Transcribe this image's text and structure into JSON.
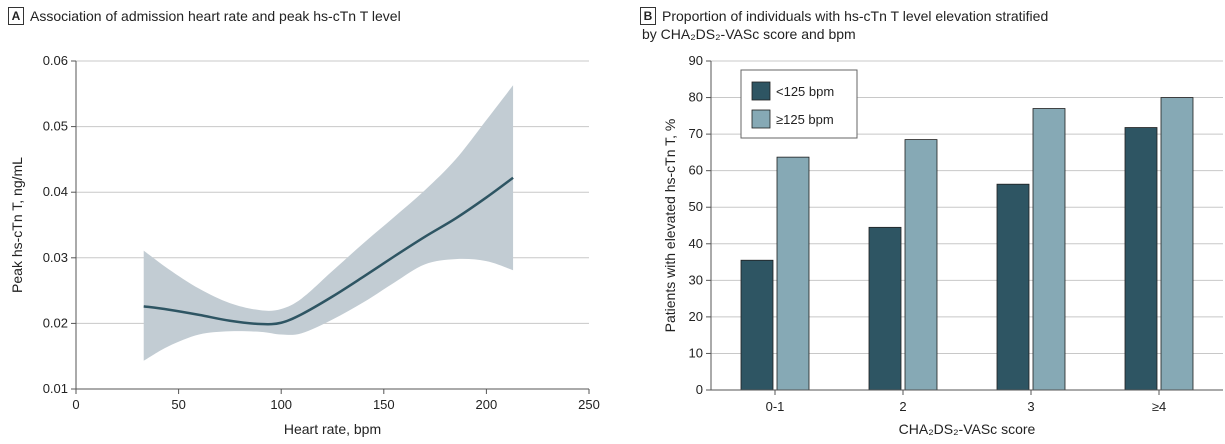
{
  "panel_a": {
    "letter": "A",
    "title": "Association of admission heart rate and peak hs-cTn T level"
  },
  "panel_b": {
    "letter": "B",
    "title_line1": "Proportion of individuals with hs-cTn T level elevation stratified",
    "title_line2": "by CHA₂DS₂-VASc score and bpm"
  },
  "chart_data": [
    {
      "type": "line",
      "title": "Association of admission heart rate and peak hs-cTn T level",
      "xlabel": "Heart rate, bpm",
      "ylabel": "Peak hs-cTn T, ng/mL",
      "xlim": [
        0,
        250
      ],
      "ylim": [
        0.01,
        0.06
      ],
      "xticks": [
        "0",
        "50",
        "100",
        "150",
        "200",
        "250"
      ],
      "yticks": [
        "0.01",
        "0.02",
        "0.03",
        "0.04",
        "0.05",
        "0.06"
      ],
      "grid": "horizontal",
      "line_color": "#2e5563",
      "band_color": "#c2ccd3",
      "series": [
        {
          "x": [
            33,
            45,
            60,
            75,
            90,
            100,
            110,
            125,
            140,
            155,
            170,
            185,
            200,
            213
          ],
          "y": [
            0.0226,
            0.0221,
            0.0213,
            0.0204,
            0.0199,
            0.0201,
            0.0214,
            0.0241,
            0.0271,
            0.0302,
            0.0332,
            0.036,
            0.0392,
            0.0422
          ],
          "lower": [
            0.0143,
            0.0165,
            0.0183,
            0.0188,
            0.0187,
            0.0183,
            0.0185,
            0.0206,
            0.0232,
            0.0262,
            0.029,
            0.0298,
            0.0295,
            0.0281
          ],
          "upper": [
            0.0311,
            0.0283,
            0.0253,
            0.0231,
            0.022,
            0.0222,
            0.0238,
            0.028,
            0.0322,
            0.0362,
            0.0403,
            0.045,
            0.051,
            0.0563
          ]
        }
      ]
    },
    {
      "type": "bar",
      "title": "Proportion of individuals with hs-cTn T level elevation stratified by CHA₂DS₂-VASc score and bpm",
      "xlabel": "CHA₂DS₂-VASc score",
      "ylabel": "Patients with elevated hs-cTn T, %",
      "ylim": [
        0,
        90
      ],
      "yticks": [
        "0",
        "10",
        "20",
        "30",
        "40",
        "50",
        "60",
        "70",
        "80",
        "90"
      ],
      "grid": "horizontal",
      "legend_position": "top-left",
      "categories": [
        "0-1",
        "2",
        "3",
        "≥4"
      ],
      "series": [
        {
          "name": "<125 bpm",
          "color": "#2e5563",
          "values": [
            35.5,
            44.5,
            56.3,
            71.8
          ]
        },
        {
          "name": "≥125 bpm",
          "color": "#86a9b5",
          "values": [
            63.7,
            68.5,
            77.0,
            80.0
          ]
        }
      ]
    }
  ]
}
